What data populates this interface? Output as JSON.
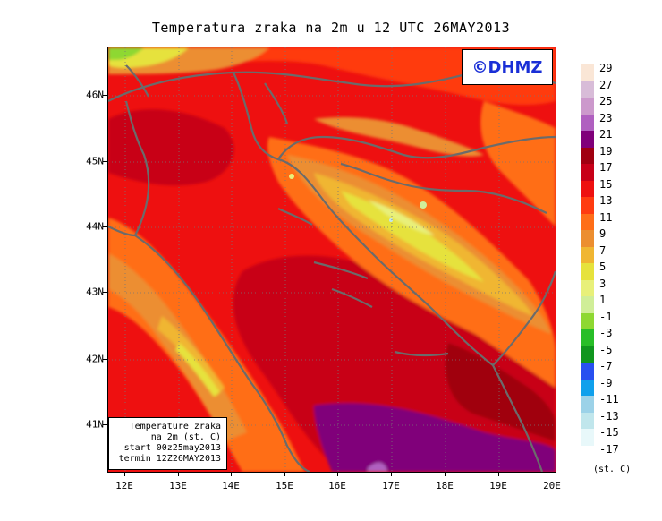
{
  "title": "Temperatura zraka na 2m u 12 UTC 26MAY2013",
  "logo_text": "©DHMZ",
  "info_box": {
    "line1": "Temperature zraka",
    "line2": "na 2m (st. C)",
    "line3": "start 00z25may2013",
    "line4": "termin 12Z26MAY2013"
  },
  "map": {
    "lat_labels": [
      "46N",
      "45N",
      "44N",
      "43N",
      "42N",
      "41N"
    ],
    "lon_labels": [
      "12E",
      "13E",
      "14E",
      "15E",
      "16E",
      "17E",
      "18E",
      "19E",
      "20E"
    ],
    "lon_range": [
      11.83,
      20.0
    ],
    "lat_range": [
      40.3,
      46.75
    ]
  },
  "legend": {
    "units": "(st. C)",
    "labels": [
      "29",
      "27",
      "25",
      "23",
      "21",
      "19",
      "17",
      "15",
      "13",
      "11",
      "9",
      "7",
      "5",
      "3",
      "1",
      "-1",
      "-3",
      "-5",
      "-7",
      "-9",
      "-11",
      "-13",
      "-15",
      "-17"
    ],
    "colors": [
      "#fae6d6",
      "#d8bcd8",
      "#cc99cc",
      "#b060c0",
      "#80007a",
      "#a00010",
      "#c80018",
      "#ee1010",
      "#ff3b10",
      "#ff6e18",
      "#ec8e30",
      "#f0b632",
      "#e6e23c",
      "#e8f07a",
      "#d0ee98",
      "#8ed832",
      "#28be28",
      "#10961e",
      "#2850f0",
      "#10a0ec",
      "#9cd2e8",
      "#c0e6ec",
      "#e8f8fa"
    ]
  }
}
